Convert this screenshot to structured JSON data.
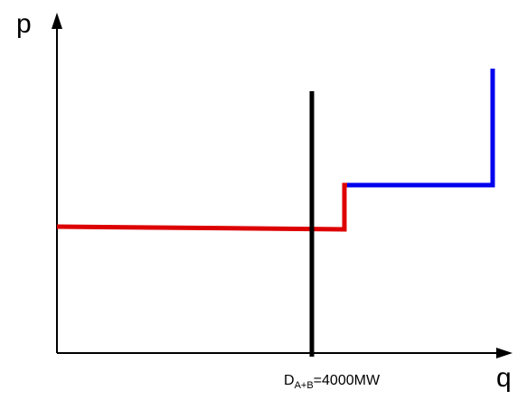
{
  "axes": {
    "y_label": "p",
    "x_label": "q"
  },
  "demand_line": {
    "label_main": "D",
    "label_subscript": "A+B",
    "label_value": "=4000MW",
    "color": "#000000"
  },
  "supply_curve": {
    "segment_a_color": "#dd0000",
    "segment_b_color": "#0000ee"
  },
  "colors": {
    "axis": "#000000",
    "background": "#ffffff"
  }
}
